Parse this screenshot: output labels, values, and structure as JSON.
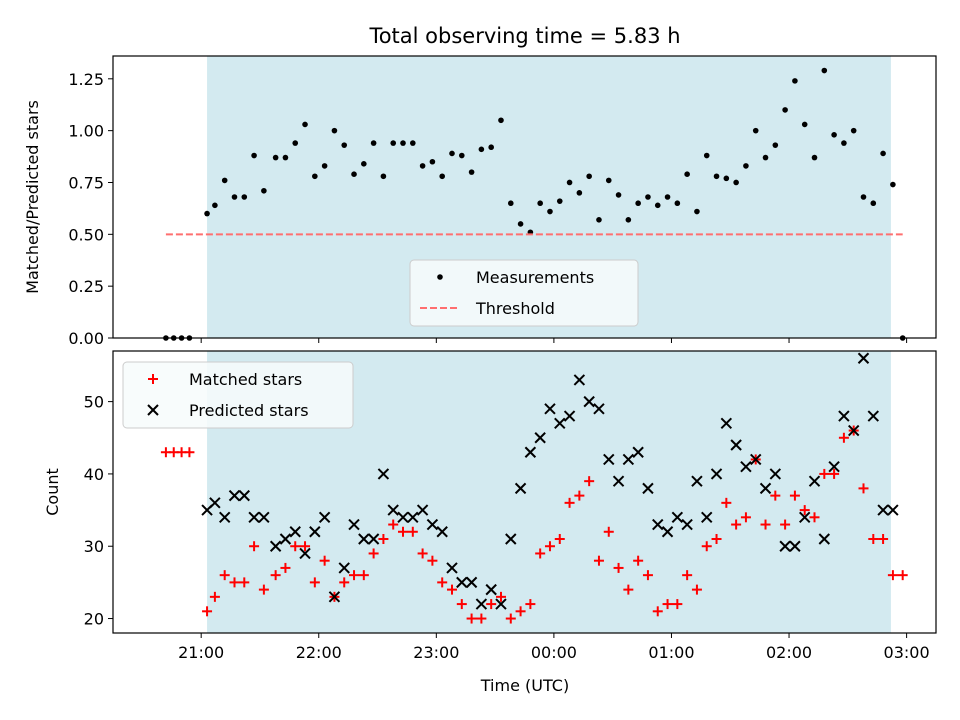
{
  "figure": {
    "title": "Total observing time = 5.83 h",
    "xlabel": "Time (UTC)",
    "x_tick_labels": [
      "21:00",
      "22:00",
      "23:00",
      "00:00",
      "01:00",
      "02:00",
      "03:00"
    ]
  },
  "chart_data": [
    {
      "type": "scatter",
      "ylabel": "Matched/Predicted stars",
      "xlim": [
        "2024-01-01 20:15",
        "2024-01-02 03:15"
      ],
      "ylim": [
        0,
        1.36
      ],
      "y_ticks": [
        "0.00",
        "0.25",
        "0.50",
        "0.75",
        "1.00",
        "1.25"
      ],
      "highlight_span": [
        "21:03",
        "02:52"
      ],
      "highlight_color": "#d3eaf0",
      "threshold": 0.5,
      "legend": {
        "position": "lower-center",
        "entries": [
          "Measurements",
          "Threshold"
        ]
      },
      "series": [
        {
          "name": "Measurements",
          "marker": "dot",
          "color": "#000000",
          "points": [
            [
              "20:42",
              0
            ],
            [
              "20:46",
              0
            ],
            [
              "20:50",
              0
            ],
            [
              "20:54",
              0
            ],
            [
              "21:03",
              0.6
            ],
            [
              "21:07",
              0.64
            ],
            [
              "21:12",
              0.76
            ],
            [
              "21:17",
              0.68
            ],
            [
              "21:22",
              0.68
            ],
            [
              "21:27",
              0.88
            ],
            [
              "21:32",
              0.71
            ],
            [
              "21:38",
              0.87
            ],
            [
              "21:43",
              0.87
            ],
            [
              "21:48",
              0.94
            ],
            [
              "21:53",
              1.03
            ],
            [
              "21:58",
              0.78
            ],
            [
              "22:03",
              0.83
            ],
            [
              "22:08",
              1.0
            ],
            [
              "22:13",
              0.93
            ],
            [
              "22:18",
              0.79
            ],
            [
              "22:23",
              0.84
            ],
            [
              "22:28",
              0.94
            ],
            [
              "22:33",
              0.78
            ],
            [
              "22:38",
              0.94
            ],
            [
              "22:43",
              0.94
            ],
            [
              "22:48",
              0.94
            ],
            [
              "22:53",
              0.83
            ],
            [
              "22:58",
              0.85
            ],
            [
              "23:03",
              0.78
            ],
            [
              "23:08",
              0.89
            ],
            [
              "23:13",
              0.88
            ],
            [
              "23:18",
              0.8
            ],
            [
              "23:23",
              0.91
            ],
            [
              "23:28",
              0.92
            ],
            [
              "23:33",
              1.05
            ],
            [
              "23:38",
              0.65
            ],
            [
              "23:43",
              0.55
            ],
            [
              "23:48",
              0.51
            ],
            [
              "23:53",
              0.65
            ],
            [
              "23:58",
              0.61
            ],
            [
              "00:03",
              0.66
            ],
            [
              "00:08",
              0.75
            ],
            [
              "00:13",
              0.7
            ],
            [
              "00:18",
              0.78
            ],
            [
              "00:23",
              0.57
            ],
            [
              "00:28",
              0.76
            ],
            [
              "00:33",
              0.69
            ],
            [
              "00:38",
              0.57
            ],
            [
              "00:43",
              0.65
            ],
            [
              "00:48",
              0.68
            ],
            [
              "00:53",
              0.64
            ],
            [
              "00:58",
              0.68
            ],
            [
              "01:03",
              0.65
            ],
            [
              "01:08",
              0.79
            ],
            [
              "01:13",
              0.61
            ],
            [
              "01:18",
              0.88
            ],
            [
              "01:23",
              0.78
            ],
            [
              "01:28",
              0.77
            ],
            [
              "01:33",
              0.75
            ],
            [
              "01:38",
              0.83
            ],
            [
              "01:43",
              1.0
            ],
            [
              "01:48",
              0.87
            ],
            [
              "01:53",
              0.93
            ],
            [
              "01:58",
              1.1
            ],
            [
              "02:03",
              1.24
            ],
            [
              "02:08",
              1.03
            ],
            [
              "02:13",
              0.87
            ],
            [
              "02:18",
              1.29
            ],
            [
              "02:23",
              0.98
            ],
            [
              "02:28",
              0.94
            ],
            [
              "02:33",
              1.0
            ],
            [
              "02:38",
              0.68
            ],
            [
              "02:43",
              0.65
            ],
            [
              "02:48",
              0.89
            ],
            [
              "02:53",
              0.74
            ],
            [
              "02:58",
              0
            ]
          ]
        },
        {
          "name": "Threshold",
          "marker": "dashed-line",
          "color": "#ff6f6f",
          "x": [
            "20:42",
            "02:58"
          ],
          "values": [
            0.5,
            0.5
          ]
        }
      ]
    },
    {
      "type": "scatter",
      "ylabel": "Count",
      "xlim": [
        "2024-01-01 20:15",
        "2024-01-02 03:15"
      ],
      "ylim": [
        18,
        57
      ],
      "y_ticks": [
        "20",
        "30",
        "40",
        "50"
      ],
      "highlight_span": [
        "21:03",
        "02:52"
      ],
      "highlight_color": "#d3eaf0",
      "legend": {
        "position": "upper-left",
        "entries": [
          "Matched stars",
          "Predicted stars"
        ]
      },
      "series": [
        {
          "name": "Matched stars",
          "marker": "plus",
          "color": "#ff0000",
          "points": [
            [
              "20:42",
              43
            ],
            [
              "20:46",
              43
            ],
            [
              "20:50",
              43
            ],
            [
              "20:54",
              43
            ],
            [
              "21:03",
              21
            ],
            [
              "21:07",
              23
            ],
            [
              "21:12",
              26
            ],
            [
              "21:17",
              25
            ],
            [
              "21:22",
              25
            ],
            [
              "21:27",
              30
            ],
            [
              "21:32",
              24
            ],
            [
              "21:38",
              26
            ],
            [
              "21:43",
              27
            ],
            [
              "21:48",
              30
            ],
            [
              "21:53",
              30
            ],
            [
              "21:58",
              25
            ],
            [
              "22:03",
              28
            ],
            [
              "22:08",
              23
            ],
            [
              "22:13",
              25
            ],
            [
              "22:18",
              26
            ],
            [
              "22:23",
              26
            ],
            [
              "22:28",
              29
            ],
            [
              "22:33",
              31
            ],
            [
              "22:38",
              33
            ],
            [
              "22:43",
              32
            ],
            [
              "22:48",
              32
            ],
            [
              "22:53",
              29
            ],
            [
              "22:58",
              28
            ],
            [
              "23:03",
              25
            ],
            [
              "23:08",
              24
            ],
            [
              "23:13",
              22
            ],
            [
              "23:18",
              20
            ],
            [
              "23:23",
              20
            ],
            [
              "23:28",
              22
            ],
            [
              "23:33",
              23
            ],
            [
              "23:38",
              20
            ],
            [
              "23:43",
              21
            ],
            [
              "23:48",
              22
            ],
            [
              "23:53",
              29
            ],
            [
              "23:58",
              30
            ],
            [
              "00:03",
              31
            ],
            [
              "00:08",
              36
            ],
            [
              "00:13",
              37
            ],
            [
              "00:18",
              39
            ],
            [
              "00:23",
              28
            ],
            [
              "00:28",
              32
            ],
            [
              "00:33",
              27
            ],
            [
              "00:38",
              24
            ],
            [
              "00:43",
              28
            ],
            [
              "00:48",
              26
            ],
            [
              "00:53",
              21
            ],
            [
              "00:58",
              22
            ],
            [
              "01:03",
              22
            ],
            [
              "01:08",
              26
            ],
            [
              "01:13",
              24
            ],
            [
              "01:18",
              30
            ],
            [
              "01:23",
              31
            ],
            [
              "01:28",
              36
            ],
            [
              "01:33",
              33
            ],
            [
              "01:38",
              34
            ],
            [
              "01:43",
              42
            ],
            [
              "01:48",
              33
            ],
            [
              "01:53",
              37
            ],
            [
              "01:58",
              33
            ],
            [
              "02:03",
              37
            ],
            [
              "02:08",
              35
            ],
            [
              "02:13",
              34
            ],
            [
              "02:18",
              40
            ],
            [
              "02:23",
              40
            ],
            [
              "02:28",
              45
            ],
            [
              "02:33",
              46
            ],
            [
              "02:38",
              38
            ],
            [
              "02:43",
              31
            ],
            [
              "02:48",
              31
            ],
            [
              "02:53",
              26
            ],
            [
              "02:58",
              26
            ]
          ]
        },
        {
          "name": "Predicted stars",
          "marker": "x",
          "color": "#000000",
          "points": [
            [
              "21:03",
              35
            ],
            [
              "21:07",
              36
            ],
            [
              "21:12",
              34
            ],
            [
              "21:17",
              37
            ],
            [
              "21:22",
              37
            ],
            [
              "21:27",
              34
            ],
            [
              "21:32",
              34
            ],
            [
              "21:38",
              30
            ],
            [
              "21:43",
              31
            ],
            [
              "21:48",
              32
            ],
            [
              "21:53",
              29
            ],
            [
              "21:58",
              32
            ],
            [
              "22:03",
              34
            ],
            [
              "22:08",
              23
            ],
            [
              "22:13",
              27
            ],
            [
              "22:18",
              33
            ],
            [
              "22:23",
              31
            ],
            [
              "22:28",
              31
            ],
            [
              "22:33",
              40
            ],
            [
              "22:38",
              35
            ],
            [
              "22:43",
              34
            ],
            [
              "22:48",
              34
            ],
            [
              "22:53",
              35
            ],
            [
              "22:58",
              33
            ],
            [
              "23:03",
              32
            ],
            [
              "23:08",
              27
            ],
            [
              "23:13",
              25
            ],
            [
              "23:18",
              25
            ],
            [
              "23:23",
              22
            ],
            [
              "23:28",
              24
            ],
            [
              "23:33",
              22
            ],
            [
              "23:38",
              31
            ],
            [
              "23:43",
              38
            ],
            [
              "23:48",
              43
            ],
            [
              "23:53",
              45
            ],
            [
              "23:58",
              49
            ],
            [
              "00:03",
              47
            ],
            [
              "00:08",
              48
            ],
            [
              "00:13",
              53
            ],
            [
              "00:18",
              50
            ],
            [
              "00:23",
              49
            ],
            [
              "00:28",
              42
            ],
            [
              "00:33",
              39
            ],
            [
              "00:38",
              42
            ],
            [
              "00:43",
              43
            ],
            [
              "00:48",
              38
            ],
            [
              "00:53",
              33
            ],
            [
              "00:58",
              32
            ],
            [
              "01:03",
              34
            ],
            [
              "01:08",
              33
            ],
            [
              "01:13",
              39
            ],
            [
              "01:18",
              34
            ],
            [
              "01:23",
              40
            ],
            [
              "01:28",
              47
            ],
            [
              "01:33",
              44
            ],
            [
              "01:38",
              41
            ],
            [
              "01:43",
              42
            ],
            [
              "01:48",
              38
            ],
            [
              "01:53",
              40
            ],
            [
              "01:58",
              30
            ],
            [
              "02:03",
              30
            ],
            [
              "02:08",
              34
            ],
            [
              "02:13",
              39
            ],
            [
              "02:18",
              31
            ],
            [
              "02:23",
              41
            ],
            [
              "02:28",
              48
            ],
            [
              "02:33",
              46
            ],
            [
              "02:38",
              56
            ],
            [
              "02:43",
              48
            ],
            [
              "02:48",
              35
            ],
            [
              "02:53",
              35
            ]
          ]
        }
      ]
    }
  ]
}
